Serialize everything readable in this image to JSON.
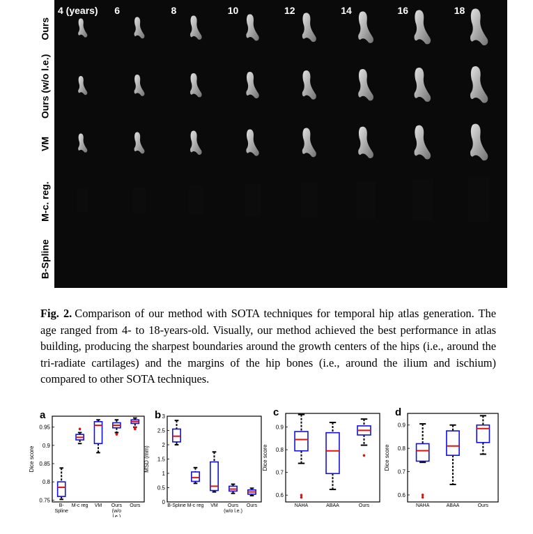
{
  "figure": {
    "columns": [
      "4 (years)",
      "6",
      "8",
      "10",
      "12",
      "14",
      "16",
      "18"
    ],
    "rows": [
      "Ours",
      "Ours (w/o l.e.)",
      "VM",
      "M-c. reg.",
      "B-Spline"
    ]
  },
  "caption": {
    "label": "Fig. 2.",
    "text": "Comparison of our method with SOTA techniques for temporal hip atlas generation. The age ranged from 4- to 18-years-old. Visually, our method achieved the best performance in atlas building, producing the sharpest boundaries around the growth centers of the hips (i.e., around the tri-radiate cartilages) and the margins of the hip bones (i.e., around the ilium and ischium) compared to other SOTA techniques."
  },
  "chart_data": [
    {
      "type": "box",
      "panel": "a",
      "ylabel": "Dice score",
      "categories": [
        "B-Spline",
        "M-c reg",
        "VM",
        "Ours (w/o l.e.)",
        "Ours"
      ],
      "ylim": [
        0.745,
        0.98
      ],
      "yticks": [
        0.75,
        0.8,
        0.85,
        0.9,
        0.95
      ],
      "boxes": [
        {
          "low": 0.752,
          "q1": 0.76,
          "median": 0.785,
          "q3": 0.8,
          "high": 0.838,
          "outliers": []
        },
        {
          "low": 0.905,
          "q1": 0.915,
          "median": 0.922,
          "q3": 0.93,
          "high": 0.935,
          "outliers": [
            0.945
          ]
        },
        {
          "low": 0.88,
          "q1": 0.905,
          "median": 0.955,
          "q3": 0.965,
          "high": 0.97,
          "outliers": []
        },
        {
          "low": 0.935,
          "q1": 0.948,
          "median": 0.955,
          "q3": 0.962,
          "high": 0.97,
          "outliers": [
            0.93
          ]
        },
        {
          "low": 0.95,
          "q1": 0.96,
          "median": 0.965,
          "q3": 0.97,
          "high": 0.975,
          "outliers": [
            0.945,
            0.948
          ]
        }
      ]
    },
    {
      "type": "box",
      "panel": "b",
      "ylabel": "MSD (mm)",
      "categories": [
        "B-Spline",
        "M-c reg",
        "VM",
        "Ours (w/o l.e.)",
        "Ours"
      ],
      "ylim": [
        0,
        3
      ],
      "yticks": [
        0,
        0.5,
        1,
        1.5,
        2,
        2.5,
        3
      ],
      "boxes": [
        {
          "low": 2.0,
          "q1": 2.1,
          "median": 2.3,
          "q3": 2.55,
          "high": 2.85,
          "outliers": []
        },
        {
          "low": 0.65,
          "q1": 0.72,
          "median": 0.85,
          "q3": 1.05,
          "high": 1.2,
          "outliers": []
        },
        {
          "low": 0.35,
          "q1": 0.4,
          "median": 0.55,
          "q3": 1.4,
          "high": 1.75,
          "outliers": []
        },
        {
          "low": 0.3,
          "q1": 0.38,
          "median": 0.45,
          "q3": 0.55,
          "high": 0.62,
          "outliers": []
        },
        {
          "low": 0.22,
          "q1": 0.27,
          "median": 0.35,
          "q3": 0.42,
          "high": 0.48,
          "outliers": []
        }
      ]
    },
    {
      "type": "box",
      "panel": "c",
      "ylabel": "Dice score",
      "categories": [
        "NAHA",
        "ABAA",
        "Ours"
      ],
      "ylim": [
        0.57,
        0.96
      ],
      "yticks": [
        0.6,
        0.7,
        0.8,
        0.9
      ],
      "boxes": [
        {
          "low": 0.74,
          "q1": 0.795,
          "median": 0.845,
          "q3": 0.88,
          "high": 0.955,
          "outliers": [
            0.59,
            0.6
          ]
        },
        {
          "low": 0.625,
          "q1": 0.695,
          "median": 0.795,
          "q3": 0.875,
          "high": 0.92,
          "outliers": []
        },
        {
          "low": 0.82,
          "q1": 0.865,
          "median": 0.885,
          "q3": 0.905,
          "high": 0.935,
          "outliers": [
            0.775
          ]
        }
      ]
    },
    {
      "type": "box",
      "panel": "d",
      "ylabel": "Dice score",
      "categories": [
        "NAHA",
        "ABAA",
        "Ours"
      ],
      "ylim": [
        0.57,
        0.95
      ],
      "yticks": [
        0.6,
        0.7,
        0.8,
        0.9
      ],
      "boxes": [
        {
          "low": 0.74,
          "q1": 0.745,
          "median": 0.79,
          "q3": 0.82,
          "high": 0.905,
          "outliers": [
            0.59,
            0.6
          ]
        },
        {
          "low": 0.645,
          "q1": 0.77,
          "median": 0.81,
          "q3": 0.875,
          "high": 0.9,
          "outliers": []
        },
        {
          "low": 0.775,
          "q1": 0.825,
          "median": 0.885,
          "q3": 0.9,
          "high": 0.94,
          "outliers": []
        }
      ]
    }
  ]
}
